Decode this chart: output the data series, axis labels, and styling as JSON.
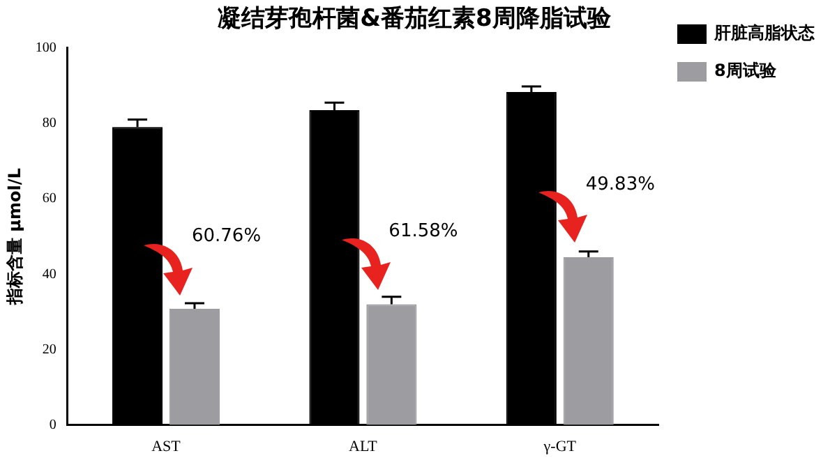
{
  "chart_data": {
    "type": "bar",
    "title": "凝结芽孢杆菌&番茄红素8周降脂试验",
    "ylabel": "指标含量 μmol/L",
    "categories": [
      "AST",
      "ALT",
      "γ-GT"
    ],
    "series": [
      {
        "name": "肝脏高脂状态",
        "color": "#000000",
        "values": [
          79,
          83.5,
          88.3
        ],
        "errors": [
          [
            79,
            81
          ],
          [
            83.5,
            85.5
          ],
          [
            88.3,
            89.8
          ]
        ]
      },
      {
        "name": "8周试验",
        "color": "#9d9ca1",
        "values": [
          30.8,
          32,
          44.5
        ],
        "errors": [
          [
            30.8,
            32.3
          ],
          [
            32,
            34
          ],
          [
            44.5,
            46
          ]
        ]
      }
    ],
    "annotations": [
      "60.76%",
      "61.58%",
      "49.83%"
    ],
    "ylim": [
      0,
      100
    ],
    "yticks": [
      0,
      20,
      40,
      60,
      80,
      100
    ],
    "grid": false,
    "legend": "top right"
  }
}
